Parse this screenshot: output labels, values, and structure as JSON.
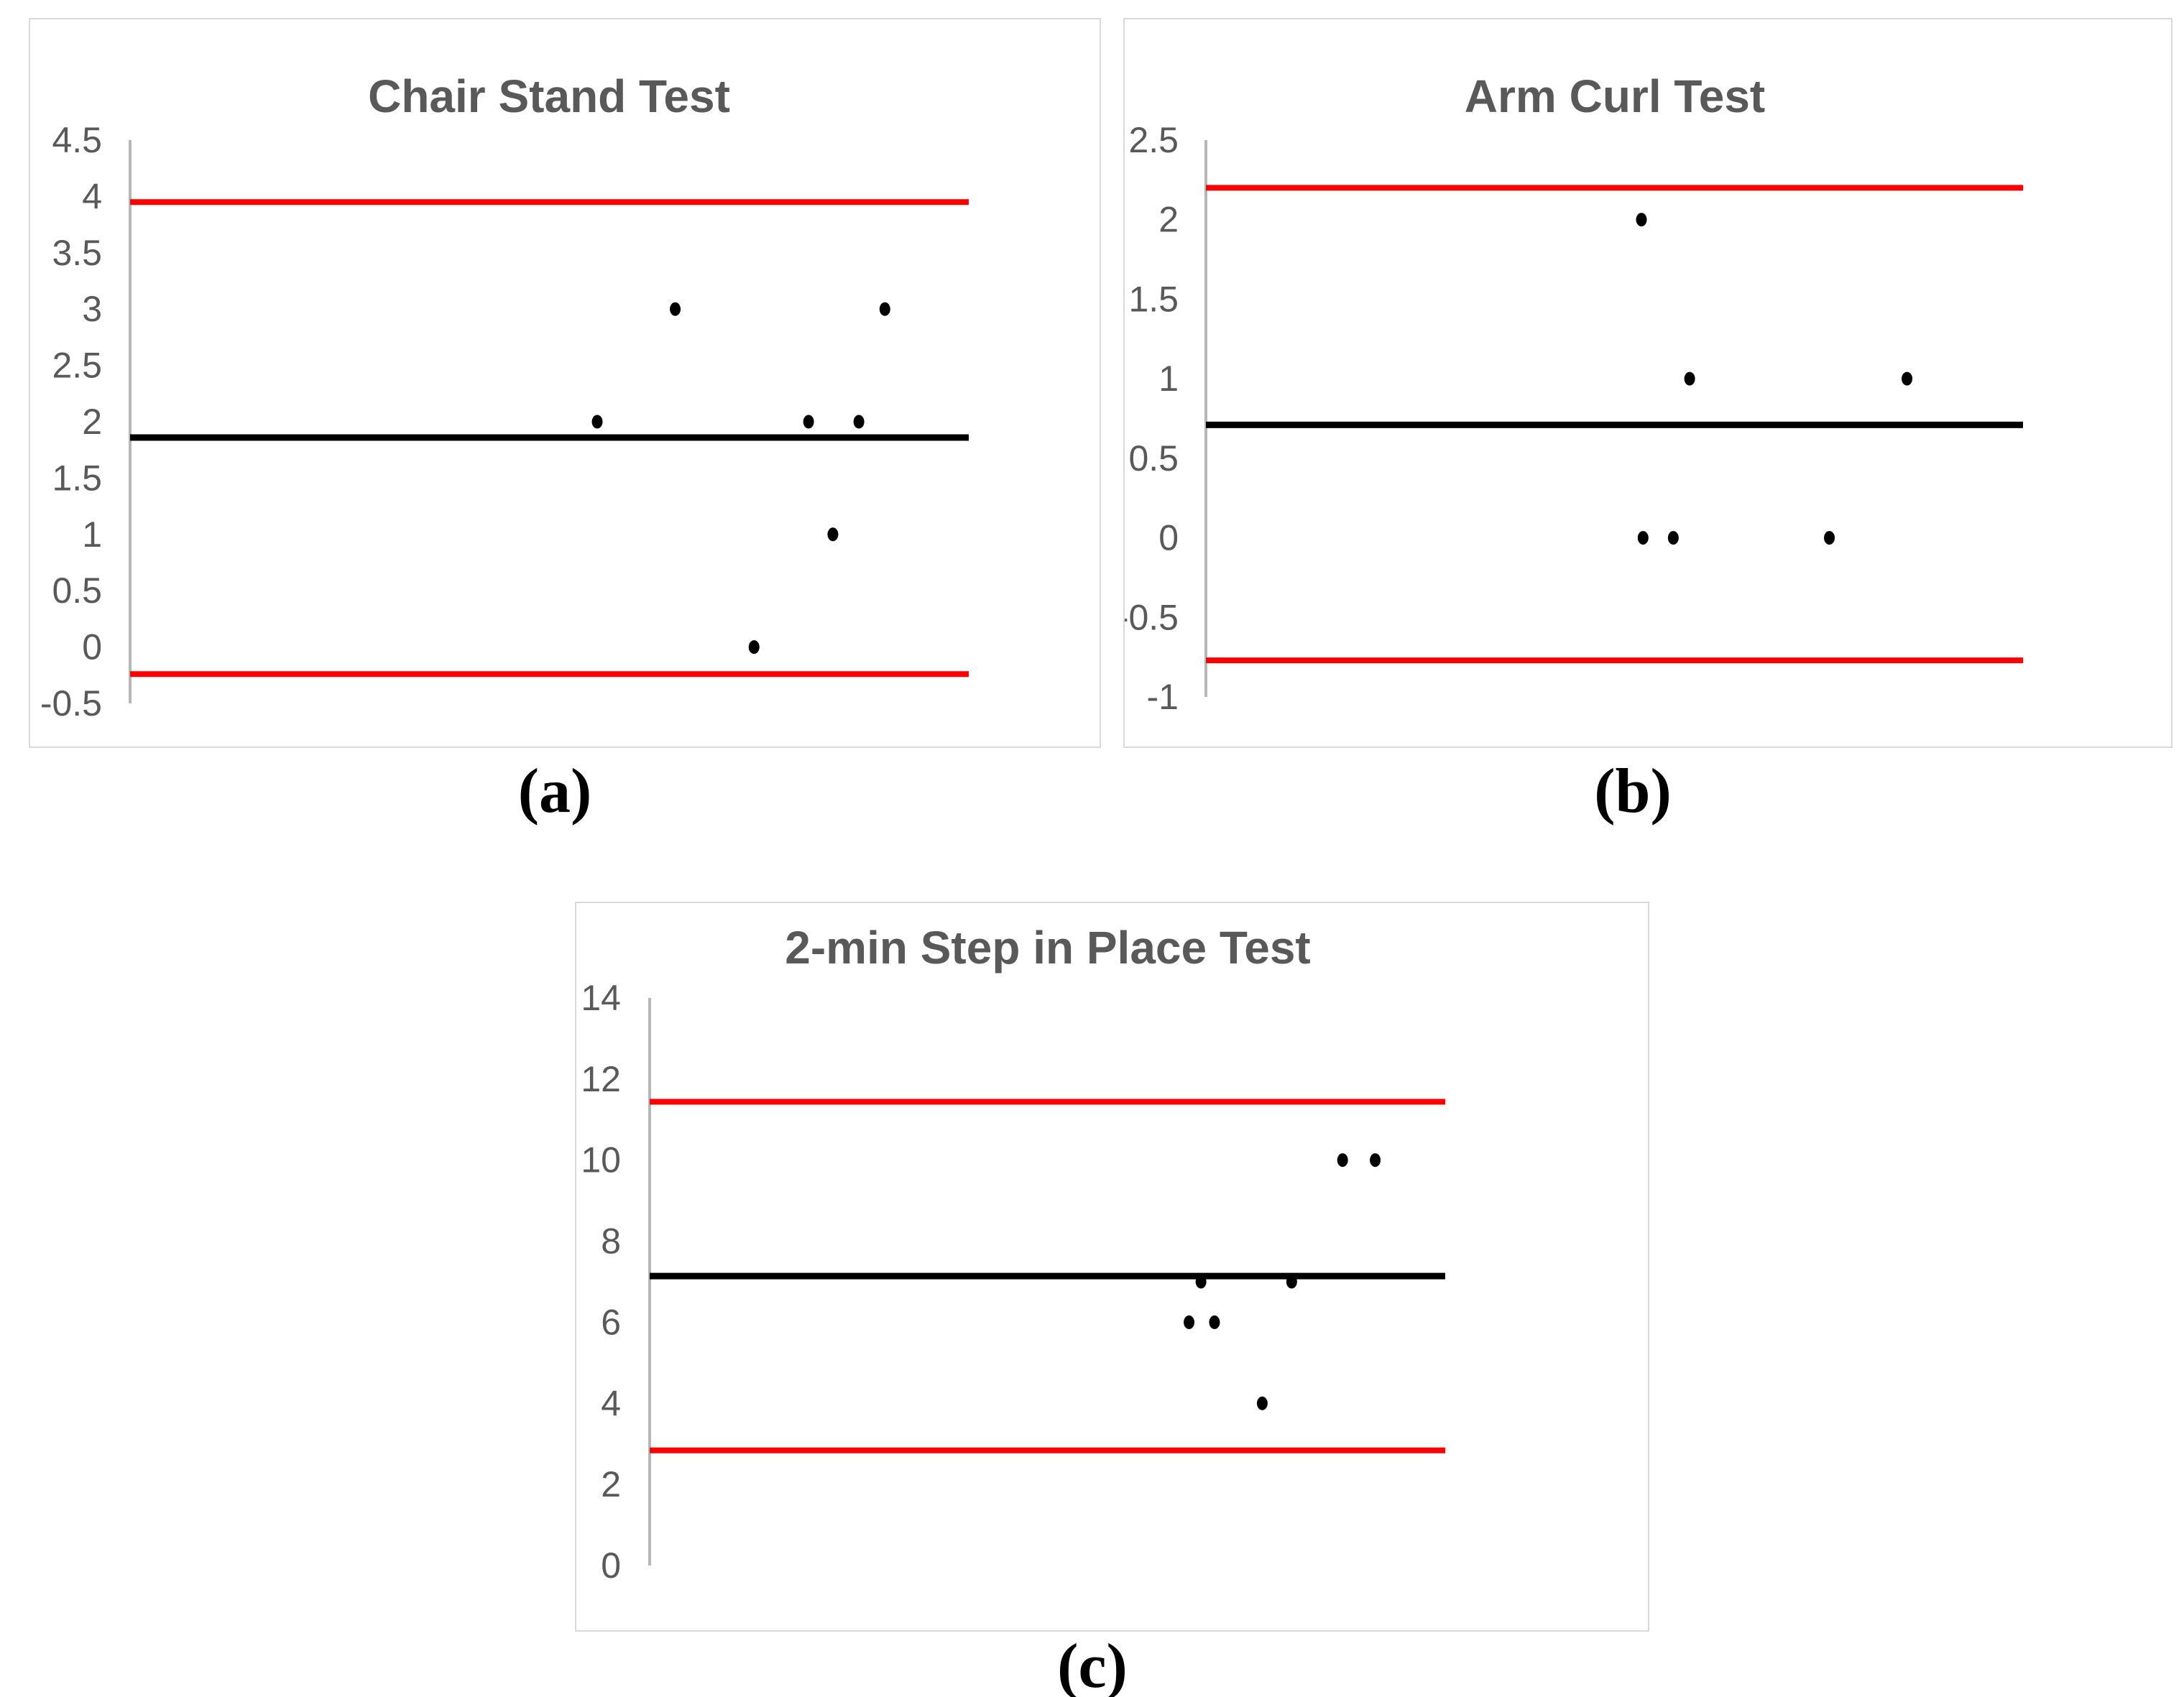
{
  "figure": {
    "panel_labels": [
      "(a)",
      "(b)",
      "(c)"
    ]
  },
  "colors": {
    "loa_line": "#FF0000",
    "mean_line": "#000000",
    "point": "#000000",
    "axis": "#B7B7B7",
    "text": "#595959",
    "panel_border": "#D9D9D9",
    "background": "#FFFFFF"
  },
  "chart_data": [
    {
      "type": "scatter",
      "title": "Chair Stand Test",
      "panel_label": "(a)",
      "ylabel": "",
      "xlabel": "",
      "ylim": [
        -0.5,
        4.5
      ],
      "y_ticks": [
        4.5,
        4,
        3.5,
        3,
        2.5,
        2,
        1.5,
        1,
        0.5,
        0,
        -0.5
      ],
      "grid": false,
      "legend": "none",
      "x_axis_labels": "none",
      "upper_loa": 3.95,
      "mean": 1.86,
      "lower_loa": -0.24,
      "points": [
        {
          "x_frac": 0.65,
          "y": 3
        },
        {
          "x_frac": 0.9,
          "y": 3
        },
        {
          "x_frac": 0.557,
          "y": 2
        },
        {
          "x_frac": 0.809,
          "y": 2
        },
        {
          "x_frac": 0.869,
          "y": 2
        },
        {
          "x_frac": 0.838,
          "y": 1
        },
        {
          "x_frac": 0.744,
          "y": 0
        }
      ]
    },
    {
      "type": "scatter",
      "title": "Arm Curl Test",
      "panel_label": "(b)",
      "ylabel": "",
      "xlabel": "",
      "ylim": [
        -1,
        2.5
      ],
      "y_ticks": [
        2.5,
        2,
        1.5,
        1,
        0.5,
        0,
        -0.5,
        -1
      ],
      "grid": false,
      "legend": "none",
      "x_axis_labels": "none",
      "upper_loa": 2.2,
      "mean": 0.71,
      "lower_loa": -0.77,
      "points": [
        {
          "x_frac": 0.533,
          "y": 2
        },
        {
          "x_frac": 0.592,
          "y": 1
        },
        {
          "x_frac": 0.858,
          "y": 1
        },
        {
          "x_frac": 0.535,
          "y": 0
        },
        {
          "x_frac": 0.572,
          "y": 0
        },
        {
          "x_frac": 0.763,
          "y": 0
        }
      ]
    },
    {
      "type": "scatter",
      "title": "2-min Step in Place Test",
      "panel_label": "(c)",
      "ylabel": "",
      "xlabel": "",
      "ylim": [
        0,
        14
      ],
      "y_ticks": [
        14,
        12,
        10,
        8,
        6,
        4,
        2,
        0
      ],
      "grid": false,
      "legend": "none",
      "x_axis_labels": "none",
      "upper_loa": 11.44,
      "mean": 7.14,
      "lower_loa": 2.84,
      "points": [
        {
          "x_frac": 0.678,
          "y": 6
        },
        {
          "x_frac": 0.71,
          "y": 6
        },
        {
          "x_frac": 0.693,
          "y": 7
        },
        {
          "x_frac": 0.807,
          "y": 7
        },
        {
          "x_frac": 0.77,
          "y": 4
        },
        {
          "x_frac": 0.871,
          "y": 10
        },
        {
          "x_frac": 0.912,
          "y": 10
        }
      ]
    }
  ]
}
